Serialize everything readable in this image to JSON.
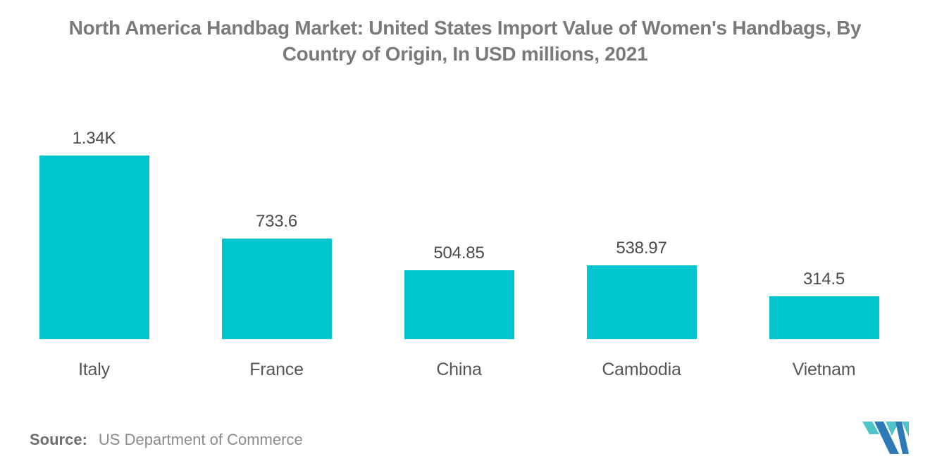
{
  "title": "North America Handbag Market: United States Import Value of Women's Handbags, By Country of Origin, In USD millions, 2021",
  "chart_data": {
    "type": "bar",
    "title": "North America Handbag Market: United States Import Value of Women's Handbags, By Country of Origin, In USD millions, 2021",
    "categories": [
      "Italy",
      "France",
      "China",
      "Cambodia",
      "Vietnam"
    ],
    "values": [
      1340,
      733.6,
      504.85,
      538.97,
      314.5
    ],
    "value_labels": [
      "1.34K",
      "733.6",
      "504.85",
      "538.97",
      "314.5"
    ],
    "xlabel": "",
    "ylabel": "",
    "ylim": [
      0,
      1400
    ],
    "grid": false,
    "legend": "none",
    "bar_color": "#00c5ce"
  },
  "source": {
    "label": "Source:",
    "text": "US Department of Commerce"
  },
  "logo": {
    "name": "mordor-intelligence-logo",
    "teal": "#4cc4ca",
    "blue": "#2e79b8"
  },
  "colors": {
    "background": "#ffffff",
    "title_text": "#7a7a7a",
    "value_label_text": "#4b4b4b",
    "category_label_text": "#565656",
    "bar": "#00c5ce"
  }
}
